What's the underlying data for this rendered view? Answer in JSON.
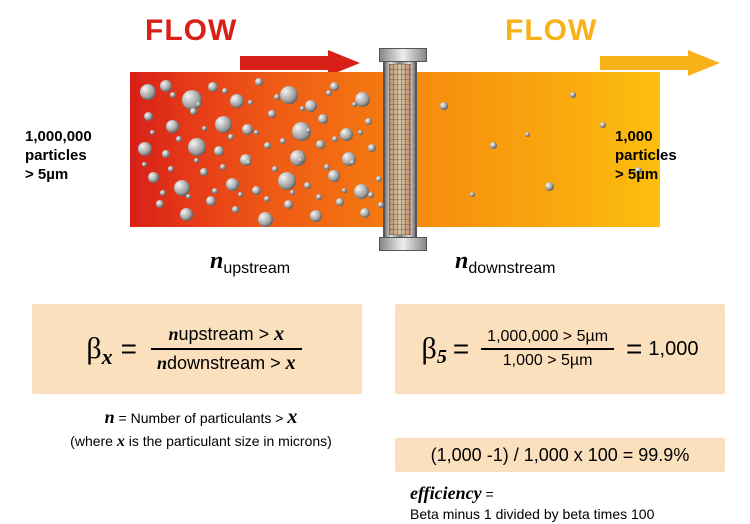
{
  "colors": {
    "flow_left": "#d82018",
    "flow_right": "#f7b21a",
    "box_bg": "#fbe0bd",
    "gradient_left_start": "#d82018",
    "gradient_right_end": "#fcbf0e",
    "particle_base": "#8a8a8a"
  },
  "labels": {
    "flow": "FLOW",
    "upstream_count": "1,000,000",
    "downstream_count": "1,000",
    "particles_word": "particles",
    "size_threshold": "> 5µm",
    "n_upstream": "upstream",
    "n_downstream": "downstream",
    "n_symbol": "n"
  },
  "formula_general": {
    "beta": "β",
    "sub": "x",
    "equals": "=",
    "num_prefix": "n",
    "num_text": "upstream > ",
    "den_prefix": "n",
    "den_text": "downstream > ",
    "var": "x"
  },
  "formula_general_caption": {
    "line1_pre": "n",
    "line1_post": " = Number of particulants > ",
    "line1_var": "x",
    "line2_pre": "(where ",
    "line2_var": "x",
    "line2_post": " is the particulant size in microns)"
  },
  "formula_example": {
    "beta": "β",
    "sub": "5",
    "equals1": "=",
    "num": "1,000,000 > 5µm",
    "den": "1,000 > 5µm",
    "equals2": "=",
    "result": "1,000"
  },
  "efficiency_calc": "(1,000 -1) / 1,000 x 100 = 99.9%",
  "efficiency_caption": {
    "label": "efficiency",
    "eq": " =",
    "desc": "Beta minus 1 divided by beta times 100"
  },
  "particles_upstream": [
    [
      10,
      12,
      16
    ],
    [
      30,
      8,
      12
    ],
    [
      52,
      18,
      20
    ],
    [
      78,
      10,
      10
    ],
    [
      100,
      22,
      14
    ],
    [
      125,
      6,
      8
    ],
    [
      150,
      14,
      18
    ],
    [
      175,
      28,
      12
    ],
    [
      200,
      10,
      9
    ],
    [
      225,
      20,
      15
    ],
    [
      14,
      40,
      9
    ],
    [
      36,
      48,
      13
    ],
    [
      60,
      36,
      7
    ],
    [
      85,
      44,
      17
    ],
    [
      112,
      52,
      11
    ],
    [
      138,
      38,
      8
    ],
    [
      162,
      50,
      19
    ],
    [
      188,
      42,
      10
    ],
    [
      210,
      56,
      13
    ],
    [
      235,
      46,
      7
    ],
    [
      8,
      70,
      14
    ],
    [
      32,
      78,
      8
    ],
    [
      58,
      66,
      18
    ],
    [
      84,
      74,
      10
    ],
    [
      110,
      82,
      12
    ],
    [
      134,
      70,
      7
    ],
    [
      160,
      78,
      16
    ],
    [
      186,
      68,
      9
    ],
    [
      212,
      80,
      14
    ],
    [
      238,
      72,
      8
    ],
    [
      18,
      100,
      11
    ],
    [
      44,
      108,
      16
    ],
    [
      70,
      96,
      8
    ],
    [
      96,
      106,
      13
    ],
    [
      122,
      114,
      9
    ],
    [
      148,
      100,
      18
    ],
    [
      174,
      110,
      7
    ],
    [
      198,
      98,
      12
    ],
    [
      224,
      112,
      15
    ],
    [
      246,
      104,
      6
    ],
    [
      26,
      128,
      8
    ],
    [
      50,
      136,
      13
    ],
    [
      76,
      124,
      10
    ],
    [
      102,
      134,
      7
    ],
    [
      128,
      140,
      15
    ],
    [
      154,
      128,
      9
    ],
    [
      180,
      138,
      12
    ],
    [
      206,
      126,
      8
    ],
    [
      230,
      136,
      10
    ],
    [
      248,
      130,
      6
    ],
    [
      40,
      20,
      6
    ],
    [
      66,
      30,
      5
    ],
    [
      92,
      16,
      6
    ],
    [
      118,
      28,
      5
    ],
    [
      144,
      22,
      6
    ],
    [
      170,
      34,
      5
    ],
    [
      196,
      18,
      6
    ],
    [
      222,
      30,
      5
    ],
    [
      20,
      58,
      5
    ],
    [
      46,
      64,
      6
    ],
    [
      72,
      54,
      5
    ],
    [
      98,
      62,
      6
    ],
    [
      124,
      58,
      5
    ],
    [
      150,
      66,
      6
    ],
    [
      176,
      56,
      5
    ],
    [
      202,
      64,
      6
    ],
    [
      228,
      58,
      5
    ],
    [
      12,
      90,
      5
    ],
    [
      38,
      94,
      6
    ],
    [
      64,
      86,
      5
    ],
    [
      90,
      92,
      6
    ],
    [
      116,
      88,
      5
    ],
    [
      142,
      94,
      6
    ],
    [
      168,
      86,
      5
    ],
    [
      194,
      92,
      6
    ],
    [
      220,
      88,
      5
    ],
    [
      30,
      118,
      6
    ],
    [
      56,
      122,
      5
    ],
    [
      82,
      116,
      6
    ],
    [
      108,
      120,
      5
    ],
    [
      134,
      124,
      6
    ],
    [
      160,
      118,
      5
    ],
    [
      186,
      122,
      6
    ],
    [
      212,
      116,
      5
    ],
    [
      238,
      120,
      6
    ]
  ],
  "particles_downstream": [
    [
      310,
      30,
      8
    ],
    [
      360,
      70,
      7
    ],
    [
      415,
      110,
      9
    ],
    [
      470,
      50,
      6
    ],
    [
      505,
      95,
      7
    ],
    [
      340,
      120,
      5
    ],
    [
      440,
      20,
      6
    ],
    [
      395,
      60,
      5
    ]
  ]
}
